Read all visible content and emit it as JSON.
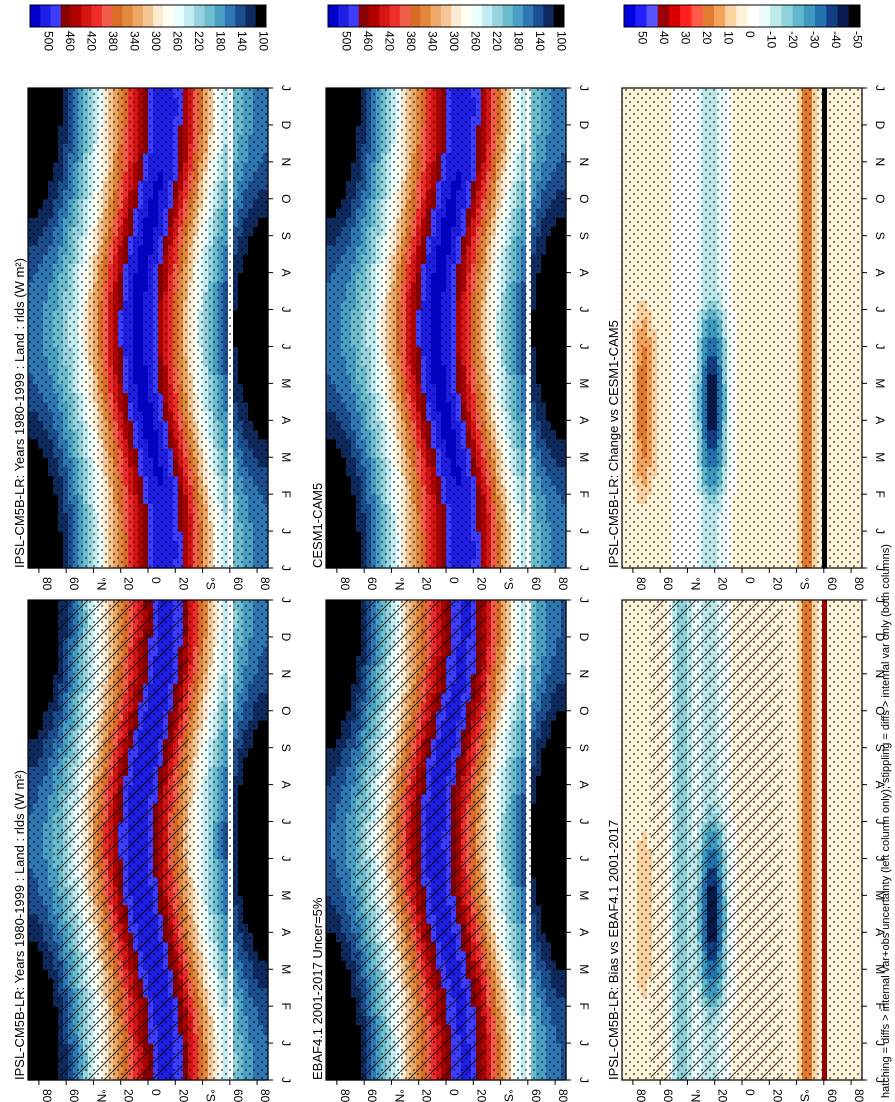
{
  "footnote": "hatching = diffs > internal var+obs uncertainty (left column only); stippling = diffs > internal var only (both columns)",
  "month_labels": [
    "J",
    "J",
    "F",
    "M",
    "A",
    "M",
    "J",
    "J",
    "A",
    "S",
    "O",
    "N",
    "D",
    "J"
  ],
  "lat_ticks": [
    "80",
    "60",
    "°N",
    "20",
    "0",
    "20",
    "°S",
    "60",
    "80"
  ],
  "colors": {
    "abs": [
      "#0000cc",
      "#1e1ee6",
      "#3d3dff",
      "#8a0000",
      "#b30000",
      "#d81414",
      "#ef2d2d",
      "#f25e4a",
      "#d96d28",
      "#e18a3d",
      "#eba866",
      "#f4c896",
      "#faebd2",
      "#fffff2",
      "#eaffff",
      "#c3ecf1",
      "#98d4de",
      "#6cbdcd",
      "#4a9fc4",
      "#2f78b4",
      "#1c4f8f",
      "#0f2a5e",
      "#000000"
    ],
    "diff": [
      "#0000e0",
      "#2020ff",
      "#5555ff",
      "#9d0000",
      "#d60000",
      "#ff2020",
      "#ff5a46",
      "#e27c2f",
      "#f3a35c",
      "#fbd3a1",
      "#fff3d9",
      "#ffffff",
      "#e9fbfb",
      "#bde9ec",
      "#8fd2dc",
      "#5fb8cc",
      "#3c9ac0",
      "#2373b1",
      "#133f87",
      "#091a4e",
      "#000000"
    ]
  },
  "chart_data": [
    {
      "type": "heatmap",
      "title": "IPSL-CM5B-LR: Years 1980-1999 : Land : rlds (W m²)",
      "x": "month",
      "y": "latitude",
      "colorbar_ticks": [
        "500",
        "460",
        "420",
        "380",
        "340",
        "300",
        "260",
        "220",
        "180",
        "140",
        "100"
      ],
      "clim": [
        100,
        500
      ],
      "hatching": true,
      "stippling": true
    },
    {
      "type": "heatmap",
      "title": "IPSL-CM5B-LR: Years 1980-1999 : Land : rlds (W m²)",
      "x": "month",
      "y": "latitude",
      "colorbar_ticks": [
        "500",
        "460",
        "420",
        "380",
        "340",
        "300",
        "260",
        "220",
        "180",
        "140",
        "100"
      ],
      "clim": [
        100,
        500
      ],
      "hatching": false,
      "stippling": true
    },
    {
      "type": "heatmap",
      "title": "EBAF4.1 2001-2017 Uncer=5%",
      "x": "month",
      "y": "latitude",
      "colorbar_ticks": [
        "500",
        "460",
        "420",
        "380",
        "340",
        "300",
        "260",
        "220",
        "180",
        "140",
        "100"
      ],
      "clim": [
        100,
        500
      ],
      "hatching": true,
      "stippling": true
    },
    {
      "type": "heatmap",
      "title": "CESM1-CAM5",
      "x": "month",
      "y": "latitude",
      "colorbar_ticks": [
        "500",
        "460",
        "420",
        "380",
        "340",
        "300",
        "260",
        "220",
        "180",
        "140",
        "100"
      ],
      "clim": [
        100,
        500
      ],
      "hatching": false,
      "stippling": true
    },
    {
      "type": "heatmap",
      "title": "IPSL-CM5B-LR: Bias vs EBAF4.1 2001-2017",
      "x": "month",
      "y": "latitude",
      "colorbar_ticks": [
        "50",
        "40",
        "30",
        "20",
        "10",
        "0",
        "-10",
        "-20",
        "-30",
        "-40",
        "-50"
      ],
      "clim": [
        -55,
        55
      ],
      "hatching": true,
      "stippling": true
    },
    {
      "type": "heatmap",
      "title": "IPSL-CM5B-LR: Change vs CESM1-CAM5",
      "x": "month",
      "y": "latitude",
      "colorbar_ticks": [
        "50",
        "40",
        "30",
        "20",
        "10",
        "0",
        "-10",
        "-20",
        "-30",
        "-40",
        "-50"
      ],
      "clim": [
        -55,
        55
      ],
      "hatching": false,
      "stippling": true
    }
  ]
}
